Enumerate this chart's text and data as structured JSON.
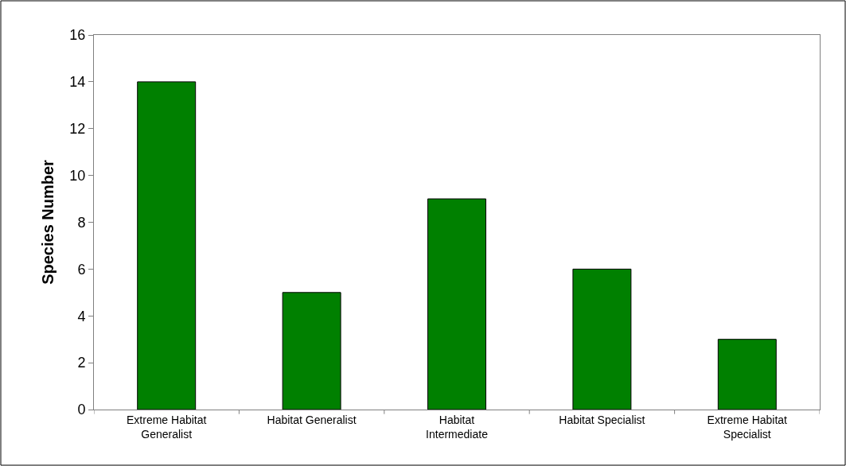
{
  "chart_data": {
    "type": "bar",
    "ylabel": "Species Number",
    "categories": [
      "Extreme Habitat Generalist",
      "Habitat Generalist",
      "Habitat Intermediate",
      "Habitat Specialist",
      "Extreme Habitat Specialist"
    ],
    "values": [
      14,
      5,
      9,
      6,
      3
    ],
    "color": "#008000",
    "ylim": [
      0,
      16
    ],
    "yticks": [
      0,
      2,
      4,
      6,
      8,
      10,
      12,
      14,
      16
    ]
  }
}
